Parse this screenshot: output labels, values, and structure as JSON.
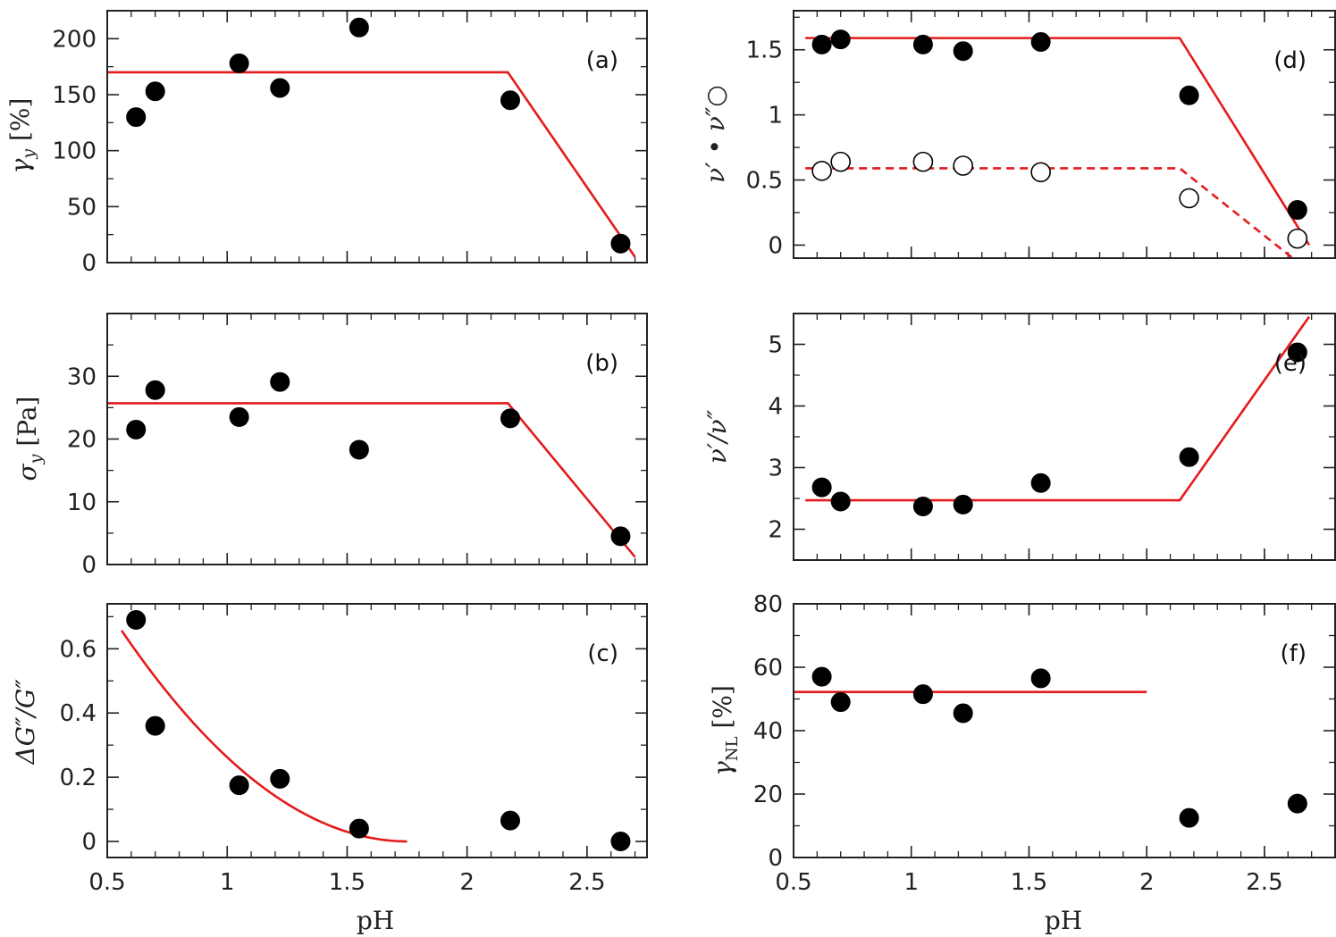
{
  "chart_data": [
    {
      "type": "scatter",
      "panel_label": "(a)",
      "ylabel": "γ_y [%]",
      "xlabel": "",
      "xlim": [
        0.5,
        2.75
      ],
      "ylim": [
        0,
        225
      ],
      "x_ticks": [
        0.5,
        1,
        1.5,
        2,
        2.5
      ],
      "x_tick_labels": [
        "",
        "",
        "",
        "",
        ""
      ],
      "y_ticks": [
        0,
        50,
        100,
        150,
        200
      ],
      "y_tick_labels": [
        "0",
        "50",
        "100",
        "150",
        "200"
      ],
      "series": [
        {
          "style": "filled",
          "x": [
            0.62,
            0.7,
            1.05,
            1.22,
            1.55,
            2.18,
            2.64
          ],
          "y": [
            130,
            153,
            178,
            156,
            210,
            145,
            17
          ]
        }
      ],
      "fit_lines": [
        {
          "style": "solid",
          "x": [
            0.5,
            2.17,
            2.7
          ],
          "y": [
            170,
            170,
            5
          ]
        }
      ]
    },
    {
      "type": "scatter",
      "panel_label": "(b)",
      "ylabel": "σ_y [Pa]",
      "xlabel": "",
      "xlim": [
        0.5,
        2.75
      ],
      "ylim": [
        0,
        40
      ],
      "x_ticks": [
        0.5,
        1,
        1.5,
        2,
        2.5
      ],
      "x_tick_labels": [
        "",
        "",
        "",
        "",
        ""
      ],
      "y_ticks": [
        0,
        10,
        20,
        30
      ],
      "y_tick_labels": [
        "0",
        "10",
        "20",
        "30"
      ],
      "series": [
        {
          "style": "filled",
          "x": [
            0.62,
            0.7,
            1.05,
            1.22,
            1.55,
            2.18,
            2.64
          ],
          "y": [
            21.5,
            27.8,
            23.5,
            29.1,
            18.3,
            23.3,
            4.5
          ]
        }
      ],
      "fit_lines": [
        {
          "style": "solid",
          "x": [
            0.5,
            2.17,
            2.7
          ],
          "y": [
            25.7,
            25.7,
            1.2
          ]
        }
      ]
    },
    {
      "type": "scatter",
      "panel_label": "(c)",
      "ylabel": "ΔG″/G″",
      "xlabel": "pH",
      "xlim": [
        0.5,
        2.75
      ],
      "ylim": [
        -0.05,
        0.74
      ],
      "x_ticks": [
        0.5,
        1,
        1.5,
        2,
        2.5
      ],
      "x_tick_labels": [
        "0.5",
        "1",
        "1.5",
        "2",
        "2.5"
      ],
      "y_ticks": [
        0,
        0.2,
        0.4,
        0.6
      ],
      "y_tick_labels": [
        "0",
        "0.2",
        "0.4",
        "0.6"
      ],
      "series": [
        {
          "style": "filled",
          "x": [
            0.62,
            0.7,
            1.05,
            1.22,
            1.55,
            2.18,
            2.64
          ],
          "y": [
            0.69,
            0.36,
            0.175,
            0.195,
            0.04,
            0.065,
            0.0
          ]
        }
      ],
      "fit_curve": {
        "style": "solid",
        "form": "a*(b-x)^2",
        "a": 0.46,
        "b": 1.755,
        "x_start": 0.56,
        "x_end": 1.75
      }
    },
    {
      "type": "scatter",
      "panel_label": "(d)",
      "ylabel": "ν′ • ν″○",
      "xlabel": "",
      "xlim": [
        0.5,
        2.8
      ],
      "ylim": [
        -0.1,
        1.8
      ],
      "x_ticks": [
        0.5,
        1,
        1.5,
        2,
        2.5
      ],
      "x_tick_labels": [
        "",
        "",
        "",
        "",
        ""
      ],
      "y_ticks": [
        0,
        0.5,
        1,
        1.5
      ],
      "y_tick_labels": [
        "0",
        "0.5",
        "1",
        "1.5"
      ],
      "series": [
        {
          "name": "ν′",
          "style": "filled",
          "x": [
            0.62,
            0.7,
            1.05,
            1.22,
            1.55,
            2.18,
            2.64
          ],
          "y": [
            1.54,
            1.58,
            1.54,
            1.49,
            1.56,
            1.15,
            0.27
          ]
        },
        {
          "name": "ν″",
          "style": "open",
          "x": [
            0.62,
            0.7,
            1.05,
            1.22,
            1.55,
            2.18,
            2.64
          ],
          "y": [
            0.57,
            0.64,
            0.64,
            0.61,
            0.56,
            0.36,
            0.05
          ]
        }
      ],
      "fit_lines": [
        {
          "style": "solid",
          "x": [
            0.55,
            2.14,
            2.69
          ],
          "y": [
            1.59,
            1.59,
            0.0
          ]
        },
        {
          "style": "dashed",
          "x": [
            0.55,
            2.14,
            2.62
          ],
          "y": [
            0.59,
            0.59,
            -0.1
          ]
        }
      ]
    },
    {
      "type": "scatter",
      "panel_label": "(e)",
      "ylabel": "ν′/ν″",
      "xlabel": "",
      "xlim": [
        0.5,
        2.8
      ],
      "ylim": [
        1.5,
        5.5
      ],
      "x_ticks": [
        0.5,
        1,
        1.5,
        2,
        2.5
      ],
      "x_tick_labels": [
        "",
        "",
        "",
        "",
        ""
      ],
      "y_ticks": [
        2,
        3,
        4,
        5
      ],
      "y_tick_labels": [
        "2",
        "3",
        "4",
        "5"
      ],
      "series": [
        {
          "style": "filled",
          "x": [
            0.62,
            0.7,
            1.05,
            1.22,
            1.55,
            2.18,
            2.64
          ],
          "y": [
            2.68,
            2.45,
            2.37,
            2.4,
            2.75,
            3.17,
            4.87
          ]
        }
      ],
      "fit_lines": [
        {
          "style": "solid",
          "x": [
            0.55,
            2.14,
            2.69
          ],
          "y": [
            2.47,
            2.47,
            5.45
          ]
        }
      ]
    },
    {
      "type": "scatter",
      "panel_label": "(f)",
      "ylabel": "γ_NL [%]",
      "xlabel": "pH",
      "xlim": [
        0.5,
        2.8
      ],
      "ylim": [
        0,
        80
      ],
      "x_ticks": [
        0.5,
        1,
        1.5,
        2,
        2.5
      ],
      "x_tick_labels": [
        "0.5",
        "1",
        "1.5",
        "2",
        "2.5"
      ],
      "y_ticks": [
        0,
        20,
        40,
        60,
        80
      ],
      "y_tick_labels": [
        "0",
        "20",
        "40",
        "60",
        "80"
      ],
      "series": [
        {
          "style": "filled",
          "x": [
            0.62,
            0.7,
            1.05,
            1.22,
            1.55,
            2.18,
            2.64
          ],
          "y": [
            57,
            49,
            51.5,
            45.5,
            56.5,
            12.5,
            17
          ]
        }
      ],
      "fit_lines": [
        {
          "style": "solid",
          "x": [
            0.5,
            2.0
          ],
          "y": [
            52.2,
            52.2
          ]
        }
      ]
    }
  ],
  "colors": {
    "fit": "#e41a1c",
    "marker": "#000000",
    "axis": "#222222"
  }
}
